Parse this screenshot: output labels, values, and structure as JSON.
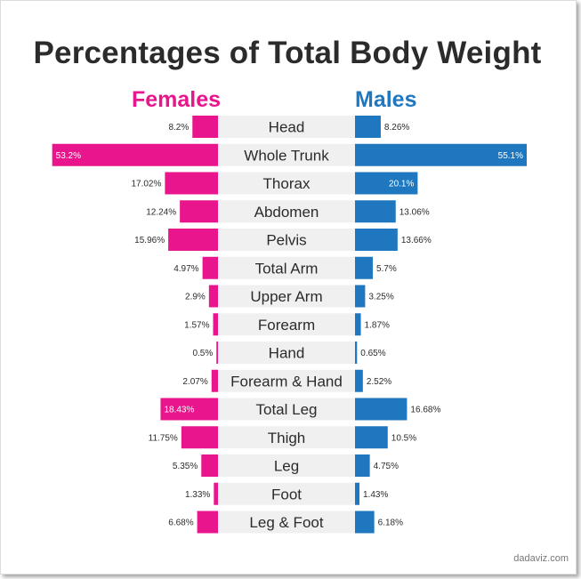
{
  "title": "Percentages of Total Body Weight",
  "footer": "dadaviz.com",
  "colors": {
    "female": "#e8158c",
    "male": "#1f77bf",
    "label_bg": "#f0f0f0",
    "text": "#2b2b2b"
  },
  "chart_data": {
    "type": "bar",
    "orientation": "horizontal-butterfly",
    "title": "Percentages of Total Body Weight",
    "categories": [
      "Head",
      "Whole Trunk",
      "Thorax",
      "Abdomen",
      "Pelvis",
      "Total Arm",
      "Upper Arm",
      "Forearm",
      "Hand",
      "Forearm & Hand",
      "Total Leg",
      "Thigh",
      "Leg",
      "Foot",
      "Leg & Foot"
    ],
    "series": [
      {
        "name": "Females",
        "values": [
          8.2,
          53.2,
          17.02,
          12.24,
          15.96,
          4.97,
          2.9,
          1.57,
          0.5,
          2.07,
          18.43,
          11.75,
          5.35,
          1.33,
          6.68
        ],
        "labels": [
          "8.2%",
          "53.2%",
          "17.02%",
          "12.24%",
          "15.96%",
          "4.97%",
          "2.9%",
          "1.57%",
          "0.5%",
          "2.07%",
          "18.43%",
          "11.75%",
          "5.35%",
          "1.33%",
          "6.68%"
        ]
      },
      {
        "name": "Males",
        "values": [
          8.26,
          55.1,
          20.1,
          13.06,
          13.66,
          5.7,
          3.25,
          1.87,
          0.65,
          2.52,
          16.68,
          10.5,
          4.75,
          1.43,
          6.18
        ],
        "labels": [
          "8.26%",
          "55.1%",
          "20.1%",
          "13.06%",
          "13.66%",
          "5.7%",
          "3.25%",
          "1.87%",
          "0.65%",
          "2.52%",
          "16.68%",
          "10.5%",
          "4.75%",
          "1.43%",
          "6.18%"
        ]
      }
    ],
    "xlim": [
      0,
      55.1
    ],
    "legend": "top",
    "grid": false
  }
}
